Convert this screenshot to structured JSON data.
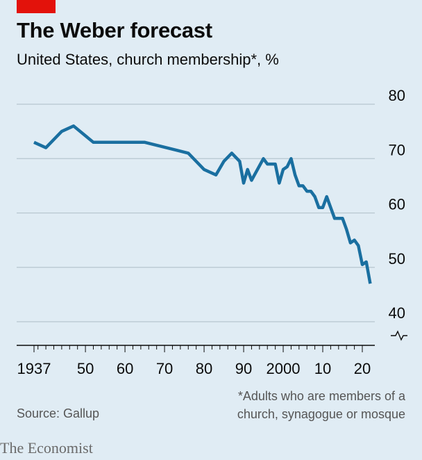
{
  "header": {
    "title": "The Weber forecast",
    "subtitle": "United States, church membership*, %"
  },
  "footnote": {
    "line1": "*Adults who are members of a",
    "line2": "church, synagogue or mosque"
  },
  "source": "Source: Gallup",
  "brand": "The Economist",
  "colors": {
    "line": "#1a6fa0",
    "accent": "#e3120b",
    "background": "#e0ecf4",
    "grid": "#b7c6cf"
  },
  "chart_data": {
    "type": "line",
    "title": "The Weber forecast",
    "subtitle": "United States, church membership*, %",
    "xlabel": "",
    "ylabel": "",
    "ylim": [
      40,
      80
    ],
    "xlim": [
      1937,
      2020
    ],
    "grid": true,
    "y_axis_side": "right",
    "y_axis_break": true,
    "y_ticks": [
      80,
      70,
      60,
      50,
      40
    ],
    "x_ticks": [
      1937,
      1950,
      1960,
      1970,
      1980,
      1990,
      2000,
      2010,
      2020
    ],
    "x_tick_labels": [
      "1937",
      "50",
      "60",
      "70",
      "80",
      "90",
      "2000",
      "10",
      "20"
    ],
    "series": [
      {
        "name": "",
        "points": [
          [
            1937,
            73
          ],
          [
            1940,
            72
          ],
          [
            1944,
            75
          ],
          [
            1947,
            76
          ],
          [
            1952,
            73
          ],
          [
            1965,
            73
          ],
          [
            1976,
            71
          ],
          [
            1980,
            68
          ],
          [
            1983,
            67
          ],
          [
            1985,
            69.5
          ],
          [
            1987,
            71
          ],
          [
            1989,
            69.5
          ],
          [
            1990,
            65.5
          ],
          [
            1991,
            68
          ],
          [
            1992,
            66
          ],
          [
            1995,
            70
          ],
          [
            1996,
            69
          ],
          [
            1998,
            69
          ],
          [
            1999,
            65.5
          ],
          [
            2000,
            68
          ],
          [
            2001,
            68.5
          ],
          [
            2002,
            70
          ],
          [
            2003,
            67
          ],
          [
            2004,
            65
          ],
          [
            2005,
            65
          ],
          [
            2006,
            64
          ],
          [
            2007,
            64
          ],
          [
            2008,
            63
          ],
          [
            2009,
            61
          ],
          [
            2010,
            61
          ],
          [
            2011,
            63
          ],
          [
            2012,
            61
          ],
          [
            2013,
            59
          ],
          [
            2014,
            59
          ],
          [
            2015,
            59
          ],
          [
            2016,
            57
          ],
          [
            2017,
            54.5
          ],
          [
            2018,
            55
          ],
          [
            2019,
            54
          ],
          [
            2020,
            50.5
          ],
          [
            2021,
            51
          ],
          [
            2022,
            47
          ]
        ]
      }
    ]
  }
}
